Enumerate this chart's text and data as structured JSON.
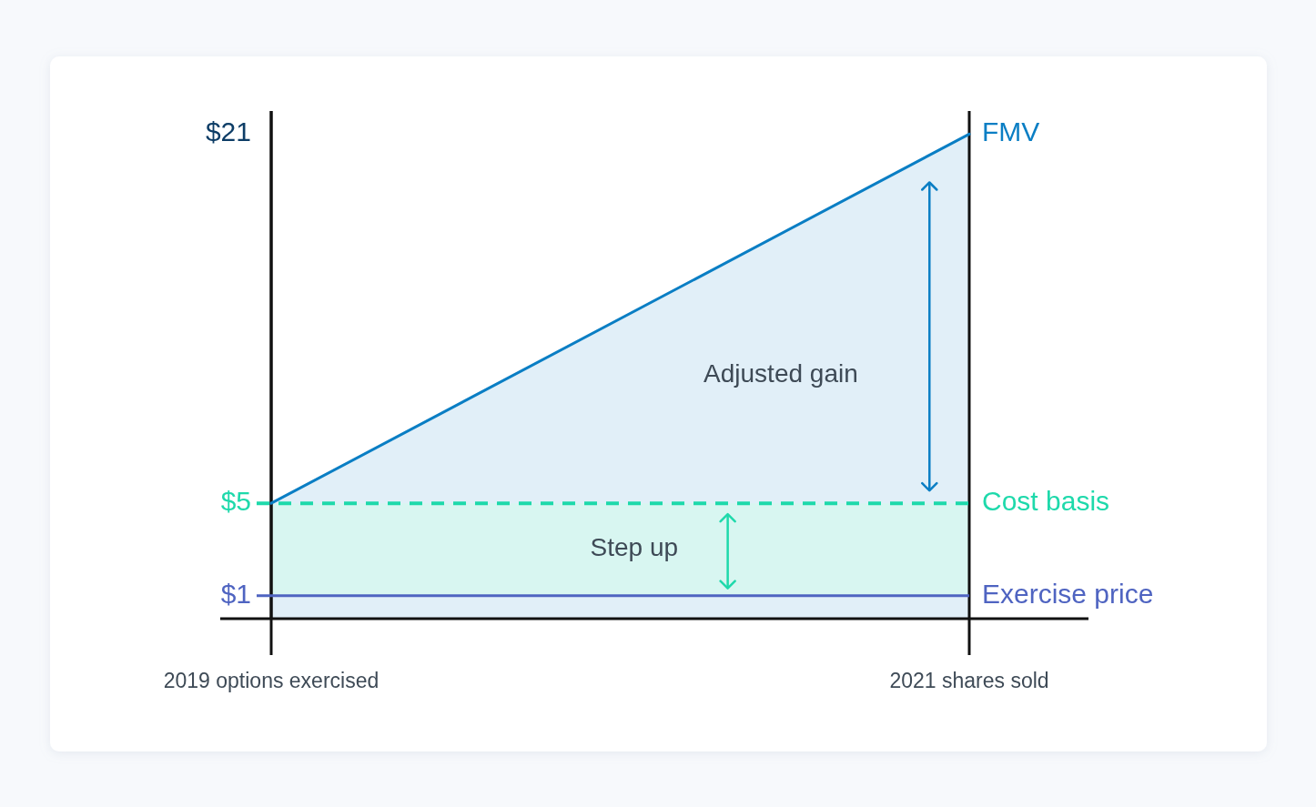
{
  "chart_data": {
    "type": "area",
    "categories": [
      "2019 options exercised",
      "2021 shares sold"
    ],
    "series": [
      {
        "name": "FMV",
        "color": "#0a7ec4",
        "values": [
          5,
          21
        ]
      }
    ],
    "ylim": [
      0,
      22
    ],
    "yticks": [
      {
        "value": 1,
        "label": "$1"
      },
      {
        "value": 5,
        "label": "$5"
      },
      {
        "value": 21,
        "label": "$21"
      }
    ],
    "ref_lines": [
      {
        "axis": "y",
        "value": 5,
        "label": "Cost basis",
        "color": "#1ed9ab",
        "line_style": "dashed"
      },
      {
        "axis": "y",
        "value": 1,
        "label": "Exercise price",
        "color": "#4f64c1",
        "line_style": "solid"
      }
    ],
    "bands": [
      {
        "axis": "y",
        "from": 1,
        "to": 5,
        "label": "Step up",
        "color": "#d8f6f1"
      }
    ],
    "annotations": [
      "Adjusted gain"
    ],
    "grid": "x"
  }
}
